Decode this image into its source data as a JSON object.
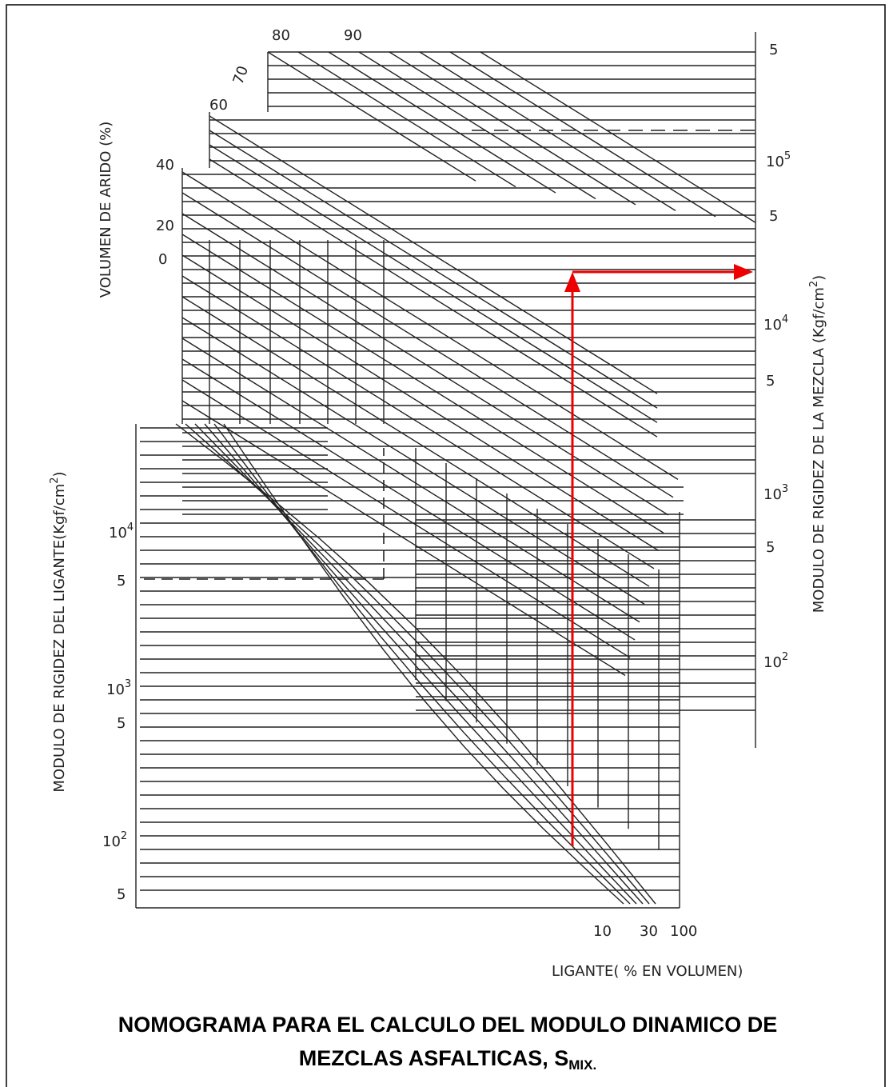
{
  "labels": {
    "volume_ticks": [
      "80",
      "90",
      "70",
      "60",
      "40",
      "20",
      "0"
    ],
    "volume_title": "VOLUMEN DE ARIDO (%)",
    "binder_title": {
      "text": "MODULO DE RIGIDEZ DEL LIGANTE(Kgf/cm",
      "sup": "2",
      "end": ")"
    },
    "binder_ticks": [
      {
        "base": "10",
        "exp": "4"
      },
      "5",
      {
        "base": "10",
        "exp": "3"
      },
      "5",
      {
        "base": "10",
        "exp": "2"
      },
      "5"
    ],
    "mix_ticks": [
      "5",
      {
        "base": "10",
        "exp": "5"
      },
      "5",
      {
        "base": "10",
        "exp": "4"
      },
      "5",
      {
        "base": "10",
        "exp": "3"
      },
      "5",
      {
        "base": "10",
        "exp": "2"
      }
    ],
    "mix_title": {
      "text": "MODULO DE RIGIDEZ DE LA MEZCLA  (Kgf/cm",
      "sup": "2",
      "end": ")"
    },
    "binder_volume_ticks": [
      "10",
      "30",
      "100"
    ],
    "binder_volume_title": "LIGANTE( % EN VOLUMEN)"
  },
  "caption": {
    "line1": "NOMOGRAMA PARA EL CALCULO DEL MODULO DINAMICO DE",
    "line2": "MEZCLAS ASFALTICAS, S",
    "subscript": "MIX."
  }
}
